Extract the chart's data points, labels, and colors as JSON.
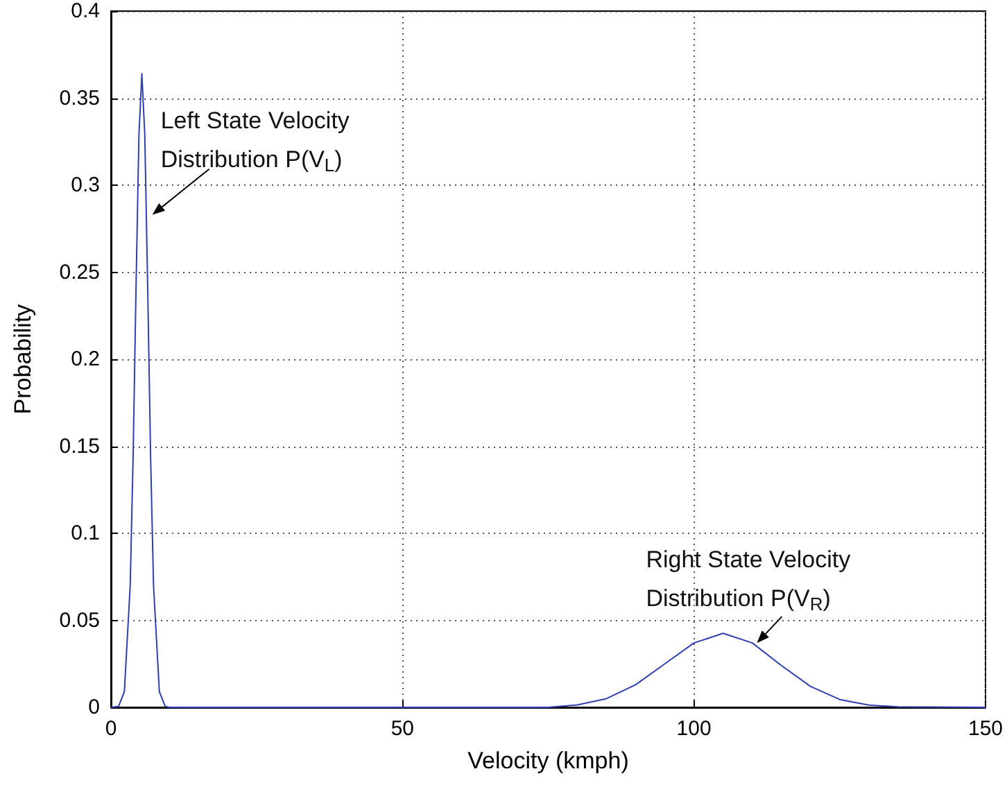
{
  "chart_data": {
    "type": "line",
    "xlabel": "Velocity (kmph)",
    "ylabel": "Probability",
    "series": [
      {
        "color": "#2f3fb0",
        "x": [
          0,
          1.3,
          2.3,
          3.3,
          3.8,
          4.3,
          4.8,
          5.3,
          5.8,
          6.3,
          6.8,
          7.3,
          8.3,
          9.3,
          10,
          75,
          80,
          85,
          90,
          95,
          100,
          105,
          110,
          115,
          120,
          125,
          130,
          135,
          150
        ],
        "values": [
          0,
          0.0005,
          0.009,
          0.07,
          0.144,
          0.241,
          0.329,
          0.364,
          0.329,
          0.241,
          0.144,
          0.07,
          0.009,
          0.0005,
          0,
          0,
          0.0014,
          0.005,
          0.013,
          0.025,
          0.037,
          0.0425,
          0.037,
          0.024,
          0.012,
          0.0045,
          0.0013,
          0.0003,
          0
        ]
      }
    ],
    "xlim": [
      0,
      150
    ],
    "xticks": [
      0,
      50,
      100,
      150
    ],
    "ylim": [
      0,
      0.4
    ],
    "yticks": [
      0,
      0.05,
      0.1,
      0.15,
      0.2,
      0.25,
      0.3,
      0.35,
      0.4
    ],
    "grid": true,
    "marker": "none",
    "line_style": "solid",
    "annotations": [
      {
        "text": "Left State Velocity Distribution P(V$_{L}$)",
        "x": 7.1,
        "y": 0.283
      },
      {
        "text": "Right State Velocity Distribution P(V$_{R}$)",
        "x": 110.8,
        "y": 0.037
      }
    ]
  }
}
